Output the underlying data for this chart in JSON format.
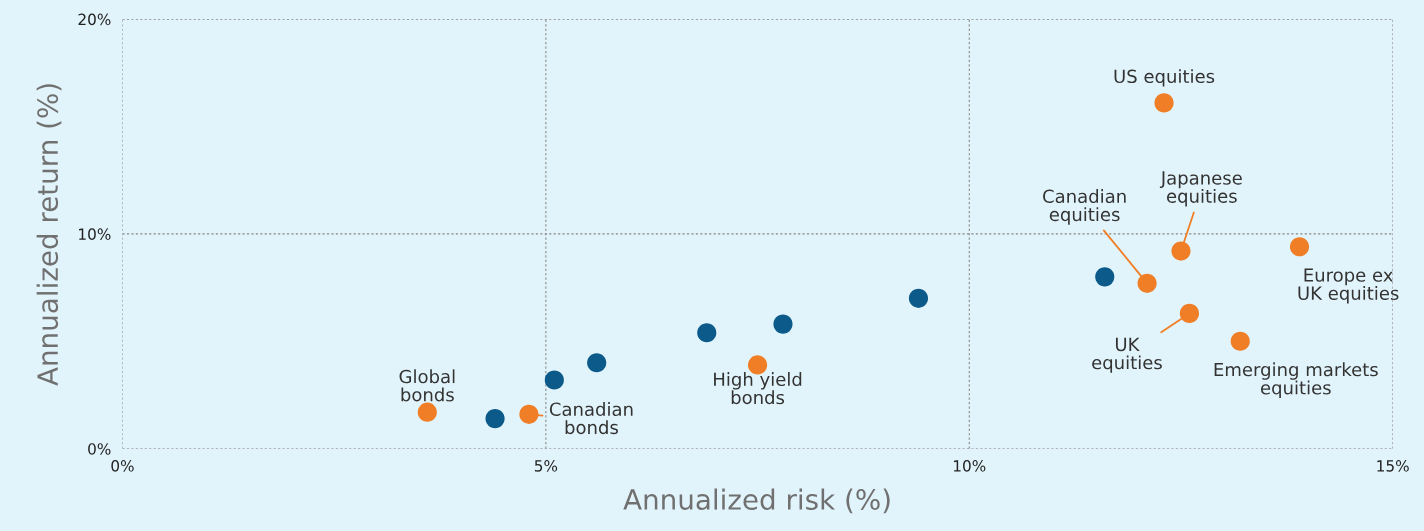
{
  "chart_data": {
    "type": "scatter",
    "xlabel": "Annualized risk (%)",
    "ylabel": "Annualized return (%)",
    "series": [
      {
        "color": "#0b5a8a",
        "x": [
          4.4,
          5.1,
          5.6,
          6.9,
          7.8,
          9.4,
          11.6
        ],
        "values": [
          1.4,
          3.2,
          4.0,
          5.4,
          5.8,
          7.0,
          8.0
        ]
      },
      {
        "color": "#f07e26",
        "x": [
          3.6,
          4.8,
          7.5,
          12.3,
          12.1,
          12.5,
          13.9,
          12.6,
          13.2
        ],
        "values": [
          1.7,
          1.6,
          3.9,
          16.1,
          7.7,
          9.2,
          9.4,
          6.3,
          5.0
        ]
      }
    ],
    "annotations": [
      {
        "text": "Global\nbonds",
        "x": 3.6,
        "y": 1.7
      },
      {
        "text": "Canadian\nbonds",
        "x": 4.8,
        "y": 1.6
      },
      {
        "text": "High yield\nbonds",
        "x": 7.5,
        "y": 3.9
      },
      {
        "text": "US equities",
        "x": 12.3,
        "y": 16.1
      },
      {
        "text": "Canadian\nequities",
        "x": 12.1,
        "y": 7.7
      },
      {
        "text": "Japanese\nequities",
        "x": 12.5,
        "y": 9.2
      },
      {
        "text": "Europe ex\nUK equities",
        "x": 13.9,
        "y": 9.4
      },
      {
        "text": "UK\nequities",
        "x": 12.6,
        "y": 6.3
      },
      {
        "text": "Emerging markets\nequities",
        "x": 13.2,
        "y": 5.0
      }
    ],
    "xlim": [
      0,
      15
    ],
    "xticks": [
      {
        "value": 0,
        "label": "0%"
      },
      {
        "value": 5,
        "label": "5%"
      },
      {
        "value": 10,
        "label": "10%"
      },
      {
        "value": 15,
        "label": "15%"
      }
    ],
    "ylim": [
      0,
      20
    ],
    "yticks": [
      {
        "value": 0,
        "label": "0%"
      },
      {
        "value": 10,
        "label": "10%"
      },
      {
        "value": 20,
        "label": "20%"
      }
    ],
    "grid": true,
    "marker": "circle",
    "legend": false
  }
}
